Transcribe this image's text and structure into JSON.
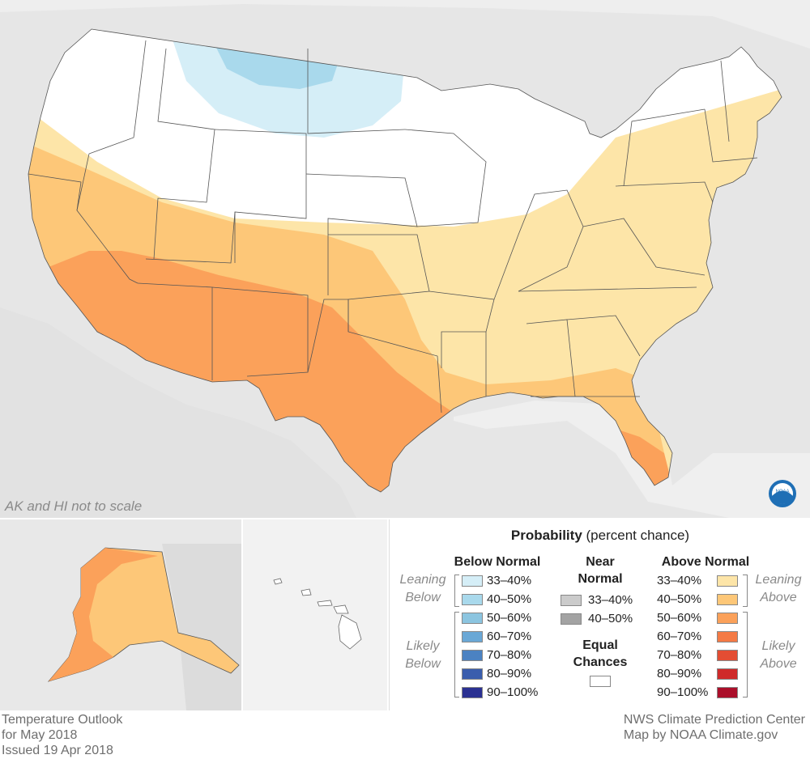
{
  "map": {
    "scale_note": "AK and HI not to scale",
    "logo_text": "NOAA"
  },
  "legend": {
    "title_bold": "Probability",
    "title_rest": " (percent chance)",
    "below": {
      "header": "Below Normal",
      "side_leaning": [
        "Leaning",
        "Below"
      ],
      "side_likely": [
        "Likely",
        "Below"
      ],
      "items": [
        {
          "label": "33–40%",
          "color": "#d5eef7"
        },
        {
          "label": "40–50%",
          "color": "#a9d9ec"
        },
        {
          "label": "50–60%",
          "color": "#8cc5e0"
        },
        {
          "label": "60–70%",
          "color": "#6aa8d6"
        },
        {
          "label": "70–80%",
          "color": "#4b82c2"
        },
        {
          "label": "80–90%",
          "color": "#3a5dad"
        },
        {
          "label": "90–100%",
          "color": "#2b3192"
        }
      ]
    },
    "near": {
      "header_line1": "Near",
      "header_line2": "Normal",
      "items": [
        {
          "label": "33–40%",
          "color": "#cbcbcb"
        },
        {
          "label": "40–50%",
          "color": "#a3a3a3"
        }
      ],
      "equal_line1": "Equal",
      "equal_line2": "Chances",
      "equal_color": "#ffffff"
    },
    "above": {
      "header": "Above Normal",
      "side_leaning": [
        "Leaning",
        "Above"
      ],
      "side_likely": [
        "Likely",
        "Above"
      ],
      "items": [
        {
          "label": "33–40%",
          "color": "#fde5a8"
        },
        {
          "label": "40–50%",
          "color": "#fdc778"
        },
        {
          "label": "50–60%",
          "color": "#fba15a"
        },
        {
          "label": "60–70%",
          "color": "#f47a45"
        },
        {
          "label": "70–80%",
          "color": "#e44d33"
        },
        {
          "label": "80–90%",
          "color": "#cf2a2a"
        },
        {
          "label": "90–100%",
          "color": "#ab0f2a"
        }
      ]
    }
  },
  "footer": {
    "left_line1": "Temperature Outlook",
    "left_line2": "for May 2018",
    "left_line3": "Issued 19 Apr 2018",
    "right_line1": "NWS Climate Prediction Center",
    "right_line2": "Map by NOAA Climate.gov"
  }
}
